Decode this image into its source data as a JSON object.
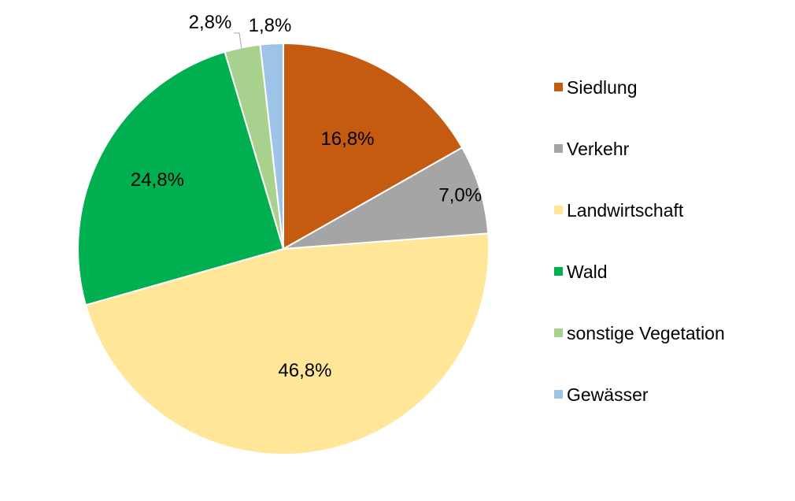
{
  "chart_data": {
    "type": "pie",
    "title": "",
    "legend_position": "right",
    "slices": [
      {
        "label": "Siedlung",
        "value": 16.8,
        "display": "16,8%",
        "color": "#c55a11"
      },
      {
        "label": "Verkehr",
        "value": 7.0,
        "display": "7,0%",
        "color": "#a5a5a5"
      },
      {
        "label": "Landwirtschaft",
        "value": 46.8,
        "display": "46,8%",
        "color": "#ffe699"
      },
      {
        "label": "Wald",
        "value": 24.8,
        "display": "24,8%",
        "color": "#00b050"
      },
      {
        "label": "sonstige Vegetation",
        "value": 2.8,
        "display": "2,8%",
        "color": "#a9d18e"
      },
      {
        "label": "Gewässer",
        "value": 1.8,
        "display": "1,8%",
        "color": "#9dc3e6"
      }
    ]
  }
}
